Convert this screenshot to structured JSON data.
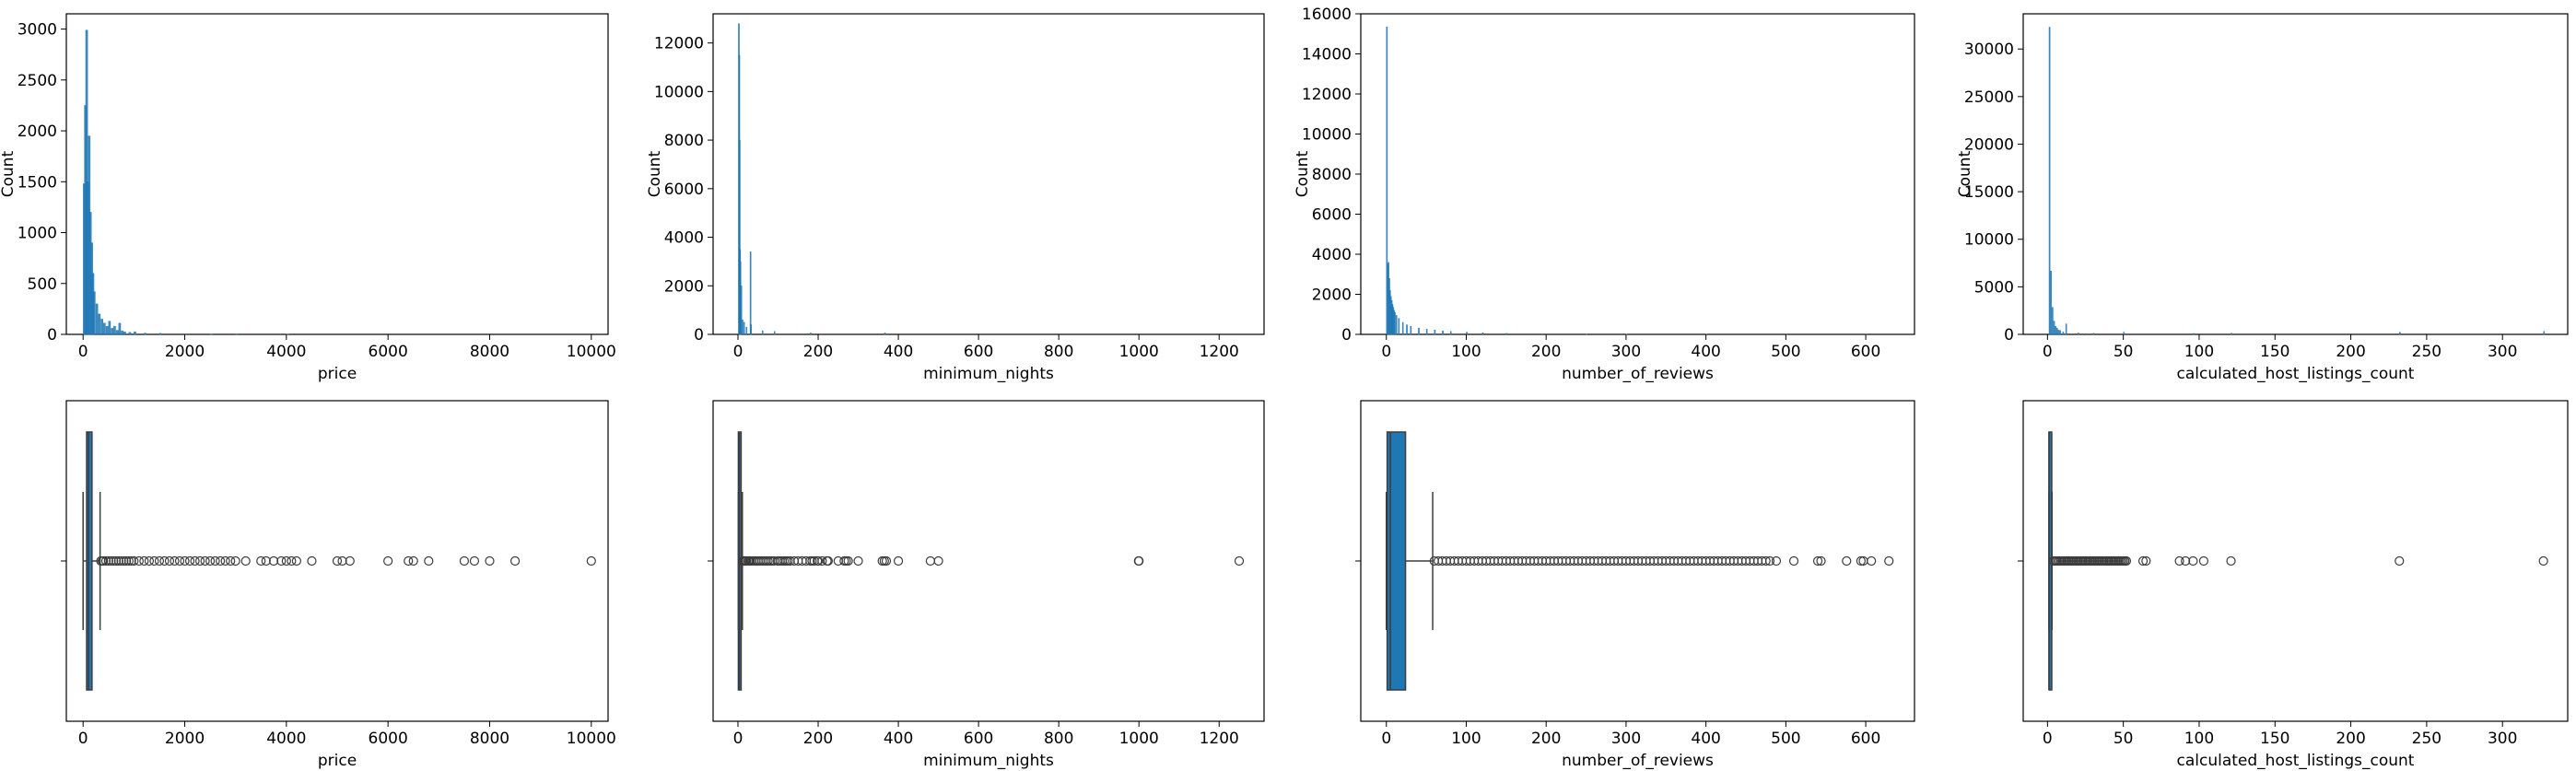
{
  "colors": {
    "bar": "#1f77b4",
    "box": "#1f77b4",
    "line": "#3d3d3d",
    "frame": "#000000",
    "background": "#ffffff"
  },
  "chart_data": [
    {
      "type": "bar",
      "id": "hist-price",
      "title": "",
      "xlabel": "price",
      "ylabel": "Count",
      "xlim": [
        -330,
        10330
      ],
      "ylim": [
        0,
        3150
      ],
      "xticks": [
        0,
        2000,
        4000,
        6000,
        8000,
        10000
      ],
      "yticks": [
        0,
        500,
        1000,
        1500,
        2000,
        2500,
        3000
      ],
      "bin_width": 40,
      "bins": [
        [
          0,
          1480
        ],
        [
          25,
          2250
        ],
        [
          50,
          2990
        ],
        [
          75,
          1500
        ],
        [
          100,
          1950
        ],
        [
          125,
          1200
        ],
        [
          150,
          900
        ],
        [
          175,
          600
        ],
        [
          200,
          420
        ],
        [
          250,
          300
        ],
        [
          300,
          200
        ],
        [
          350,
          150
        ],
        [
          400,
          110
        ],
        [
          450,
          80
        ],
        [
          500,
          130
        ],
        [
          550,
          60
        ],
        [
          600,
          80
        ],
        [
          650,
          40
        ],
        [
          700,
          110
        ],
        [
          750,
          35
        ],
        [
          800,
          25
        ],
        [
          900,
          20
        ],
        [
          1000,
          25
        ],
        [
          1200,
          12
        ],
        [
          1500,
          10
        ],
        [
          2000,
          6
        ],
        [
          2500,
          4
        ],
        [
          3000,
          5
        ],
        [
          4000,
          3
        ]
      ]
    },
    {
      "type": "bar",
      "id": "hist-minimum_nights",
      "title": "",
      "xlabel": "minimum_nights",
      "ylabel": "Count",
      "xlim": [
        -62,
        1312
      ],
      "ylim": [
        0,
        13200
      ],
      "xticks": [
        0,
        200,
        400,
        600,
        800,
        1000,
        1200
      ],
      "yticks": [
        0,
        2000,
        4000,
        6000,
        8000,
        10000,
        12000
      ],
      "bin_width": 1.2,
      "bins": [
        [
          1,
          12800
        ],
        [
          2,
          11500
        ],
        [
          3,
          8000
        ],
        [
          4,
          3500
        ],
        [
          5,
          3000
        ],
        [
          7,
          2000
        ],
        [
          10,
          600
        ],
        [
          14,
          500
        ],
        [
          20,
          300
        ],
        [
          30,
          3400
        ],
        [
          31,
          400
        ],
        [
          60,
          150
        ],
        [
          90,
          120
        ],
        [
          180,
          60
        ],
        [
          365,
          60
        ]
      ]
    },
    {
      "type": "bar",
      "id": "hist-number_of_reviews",
      "title": "",
      "xlabel": "number_of_reviews",
      "ylabel": "Count",
      "xlim": [
        -32,
        661
      ],
      "ylim": [
        0,
        16000
      ],
      "xticks": [
        0,
        100,
        200,
        300,
        400,
        500,
        600
      ],
      "yticks": [
        0,
        2000,
        4000,
        6000,
        8000,
        10000,
        12000,
        14000,
        16000
      ],
      "bin_width": 1,
      "bins": [
        [
          0,
          15350
        ],
        [
          1,
          3500
        ],
        [
          2,
          3600
        ],
        [
          3,
          2800
        ],
        [
          4,
          2200
        ],
        [
          5,
          1900
        ],
        [
          6,
          1700
        ],
        [
          7,
          1500
        ],
        [
          8,
          1350
        ],
        [
          9,
          1200
        ],
        [
          10,
          1100
        ],
        [
          12,
          950
        ],
        [
          15,
          800
        ],
        [
          20,
          600
        ],
        [
          25,
          480
        ],
        [
          30,
          400
        ],
        [
          40,
          320
        ],
        [
          50,
          260
        ],
        [
          60,
          220
        ],
        [
          70,
          180
        ],
        [
          80,
          150
        ],
        [
          100,
          110
        ],
        [
          120,
          80
        ],
        [
          150,
          55
        ],
        [
          200,
          35
        ],
        [
          250,
          20
        ],
        [
          300,
          10
        ],
        [
          400,
          4
        ],
        [
          500,
          2
        ],
        [
          600,
          1
        ]
      ]
    },
    {
      "type": "bar",
      "id": "hist-calculated_host_listings_count",
      "title": "",
      "xlabel": "calculated_host_listings_count",
      "ylabel": "Count",
      "xlim": [
        -16,
        343
      ],
      "ylim": [
        0,
        33700
      ],
      "xticks": [
        0,
        50,
        100,
        150,
        200,
        250,
        300
      ],
      "yticks": [
        0,
        5000,
        10000,
        15000,
        20000,
        25000,
        30000
      ],
      "bin_width": 0.33,
      "bins": [
        [
          1,
          32300
        ],
        [
          2,
          6650
        ],
        [
          3,
          2850
        ],
        [
          4,
          1400
        ],
        [
          5,
          850
        ],
        [
          6,
          650
        ],
        [
          7,
          450
        ],
        [
          8,
          400
        ],
        [
          10,
          250
        ],
        [
          12,
          1100
        ],
        [
          20,
          150
        ],
        [
          30,
          120
        ],
        [
          50,
          240
        ],
        [
          96,
          100
        ],
        [
          121,
          120
        ],
        [
          232,
          230
        ],
        [
          327,
          320
        ]
      ]
    },
    {
      "type": "box",
      "id": "box-price",
      "title": "",
      "xlabel": "price",
      "xlim": [
        -330,
        10330
      ],
      "xticks": [
        0,
        2000,
        4000,
        6000,
        8000,
        10000
      ],
      "whisker_low": 0,
      "q1": 69,
      "median": 106,
      "q3": 175,
      "whisker_high": 334,
      "outliers": [
        350,
        380,
        400,
        450,
        500,
        550,
        600,
        650,
        700,
        750,
        800,
        850,
        900,
        950,
        1000,
        1100,
        1200,
        1300,
        1400,
        1500,
        1600,
        1700,
        1800,
        1900,
        2000,
        2100,
        2200,
        2300,
        2400,
        2500,
        2600,
        2700,
        2800,
        2900,
        3000,
        3200,
        3500,
        3600,
        3750,
        3900,
        4000,
        4100,
        4200,
        4500,
        5000,
        5100,
        5250,
        6000,
        6400,
        6500,
        6800,
        7500,
        7700,
        8000,
        8500,
        10000
      ]
    },
    {
      "type": "box",
      "id": "box-minimum_nights",
      "title": "",
      "xlabel": "minimum_nights",
      "xlim": [
        -62,
        1312
      ],
      "xticks": [
        0,
        200,
        400,
        600,
        800,
        1000,
        1200
      ],
      "whisker_low": 1,
      "q1": 1,
      "median": 3,
      "q3": 5,
      "whisker_high": 11,
      "outliers": [
        12,
        14,
        15,
        18,
        20,
        21,
        25,
        28,
        30,
        31,
        35,
        40,
        45,
        50,
        55,
        60,
        65,
        70,
        75,
        80,
        85,
        90,
        99,
        100,
        105,
        110,
        115,
        120,
        125,
        130,
        140,
        150,
        160,
        170,
        180,
        185,
        190,
        198,
        200,
        210,
        222,
        225,
        250,
        265,
        270,
        275,
        300,
        360,
        365,
        370,
        400,
        480,
        500,
        999,
        1000,
        1250
      ]
    },
    {
      "type": "box",
      "id": "box-number_of_reviews",
      "title": "",
      "xlabel": "number_of_reviews",
      "xlim": [
        -32,
        661
      ],
      "xticks": [
        0,
        100,
        200,
        300,
        400,
        500,
        600
      ],
      "whisker_low": 0,
      "q1": 1,
      "median": 5,
      "q3": 24,
      "whisker_high": 58,
      "outliers": [
        60,
        65,
        70,
        75,
        80,
        85,
        90,
        95,
        100,
        105,
        110,
        115,
        120,
        125,
        130,
        135,
        140,
        145,
        150,
        155,
        160,
        165,
        170,
        175,
        180,
        185,
        190,
        195,
        200,
        205,
        210,
        215,
        220,
        225,
        230,
        235,
        240,
        245,
        250,
        255,
        260,
        265,
        270,
        275,
        280,
        285,
        290,
        295,
        300,
        305,
        310,
        315,
        320,
        325,
        330,
        335,
        340,
        345,
        350,
        355,
        360,
        365,
        370,
        375,
        380,
        385,
        390,
        395,
        400,
        405,
        410,
        415,
        420,
        425,
        430,
        435,
        440,
        445,
        450,
        455,
        460,
        465,
        470,
        475,
        480,
        488,
        510,
        540,
        544,
        576,
        594,
        597,
        607,
        629
      ]
    },
    {
      "type": "box",
      "id": "box-calculated_host_listings_count",
      "title": "",
      "xlabel": "calculated_host_listings_count",
      "xlim": [
        -16,
        343
      ],
      "xticks": [
        0,
        50,
        100,
        150,
        200,
        250,
        300
      ],
      "whisker_low": 1,
      "q1": 1,
      "median": 1,
      "q3": 2,
      "whisker_high": 3,
      "outliers": [
        4,
        5,
        6,
        7,
        8,
        9,
        10,
        11,
        12,
        13,
        14,
        15,
        16,
        17,
        18,
        19,
        20,
        21,
        22,
        23,
        24,
        25,
        26,
        27,
        28,
        29,
        30,
        31,
        32,
        33,
        34,
        35,
        36,
        37,
        38,
        39,
        40,
        41,
        42,
        43,
        44,
        45,
        46,
        47,
        48,
        49,
        50,
        51,
        52,
        63,
        65,
        87,
        91,
        96,
        103,
        121,
        232,
        327
      ]
    }
  ]
}
